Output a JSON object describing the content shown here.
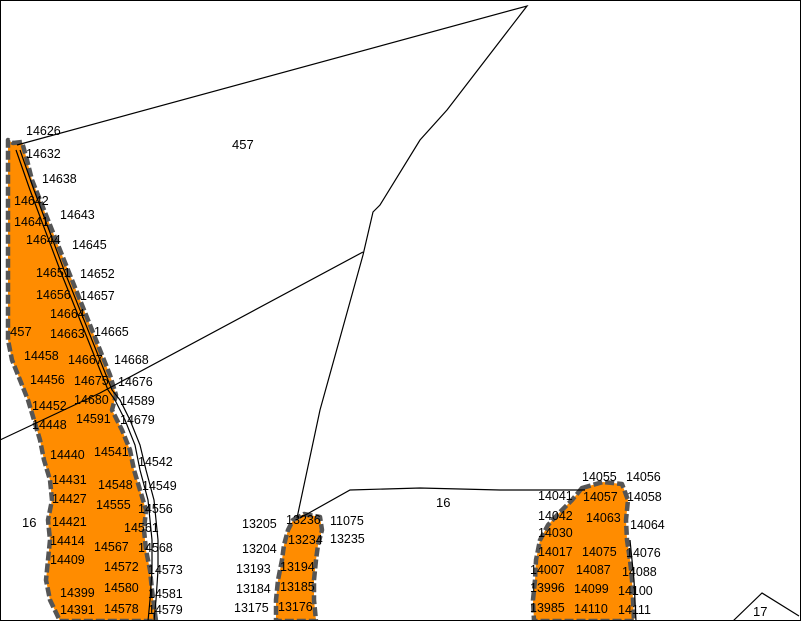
{
  "map": {
    "colors": {
      "zone_fill": "#ff8c00",
      "zone_outline": "#555555",
      "parcel_line": "#000000",
      "background": "#ffffff"
    },
    "area_labels": {
      "parcel_457_top": "457",
      "parcel_457_left": "457",
      "parcel_16_left": "16",
      "parcel_16_center": "16",
      "parcel_17": "17"
    },
    "point_labels": {
      "left": [
        "14626",
        "14632",
        "14638",
        "14642",
        "14641",
        "14643",
        "14644",
        "14645",
        "14651",
        "14652",
        "14656",
        "14657",
        "14664",
        "14663",
        "14665",
        "14458",
        "14667",
        "14668",
        "14456",
        "14675",
        "14676",
        "14452",
        "14680",
        "14589",
        "14448",
        "14591",
        "14679",
        "14440",
        "14541",
        "14542",
        "14431",
        "14548",
        "14549",
        "14427",
        "14555",
        "14556",
        "14421",
        "14561",
        "14414",
        "14567",
        "14568",
        "14409",
        "14572",
        "14573",
        "14399",
        "14580",
        "14581",
        "14391",
        "14578",
        "14579"
      ],
      "middle": [
        "13205",
        "13236",
        "11075",
        "13234",
        "13235",
        "13204",
        "13193",
        "13194",
        "13184",
        "13185",
        "13175",
        "13176"
      ],
      "right": [
        "14055",
        "14056",
        "14041",
        "14057",
        "14058",
        "14042",
        "14063",
        "14064",
        "14030",
        "14017",
        "14075",
        "14076",
        "14007",
        "14087",
        "14088",
        "13996",
        "14099",
        "14100",
        "13985",
        "14110",
        "14111"
      ]
    }
  }
}
